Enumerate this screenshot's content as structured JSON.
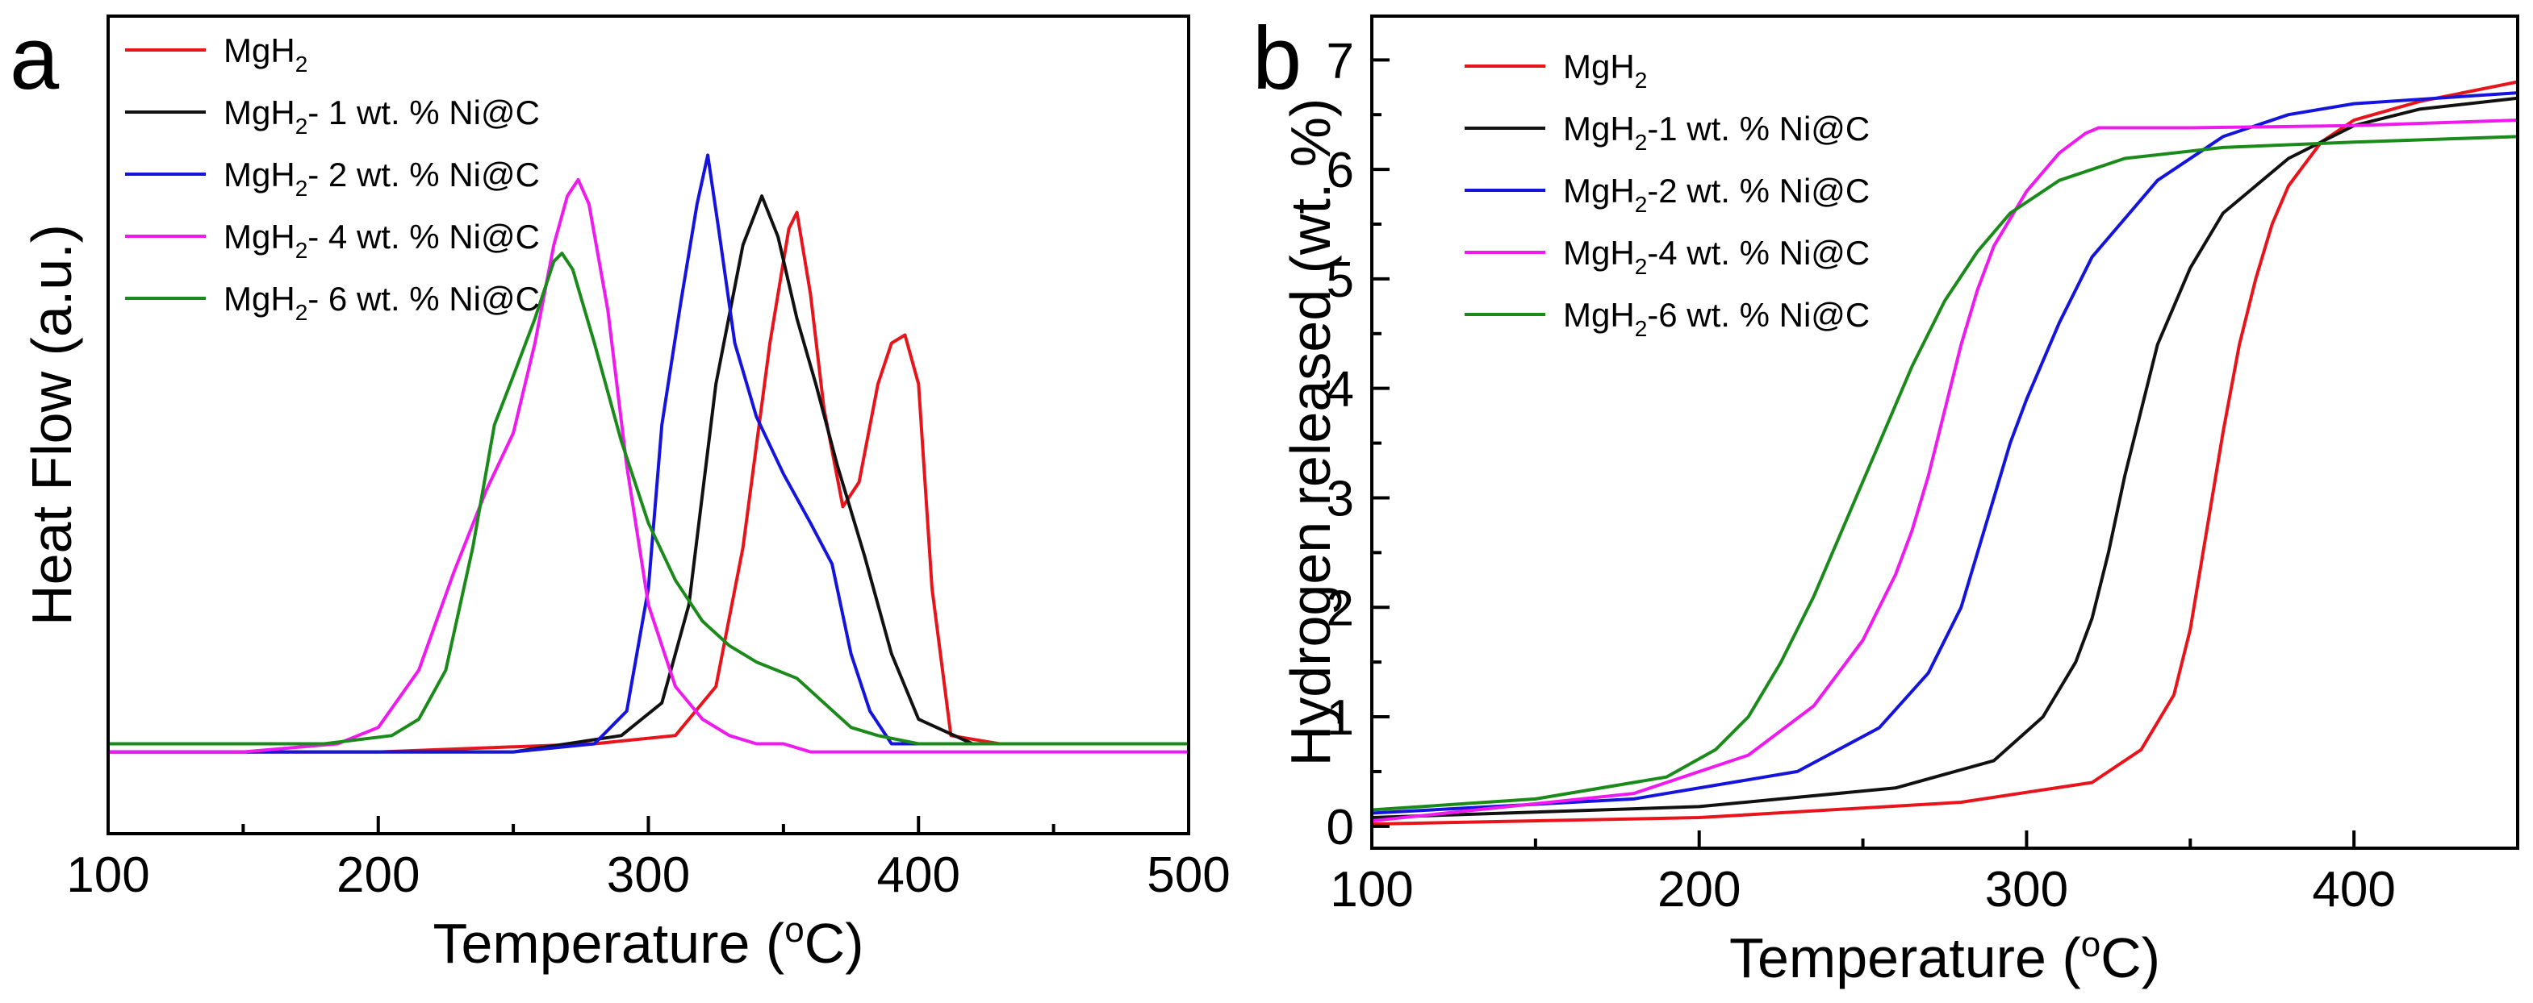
{
  "chart_data": [
    {
      "panel": "a",
      "type": "line",
      "xlabel": "Temperature (°C)",
      "xlabel_parts": {
        "pre": "Temperature (",
        "sup": "o",
        "post": "C)"
      },
      "ylabel": "Heat Flow (a.u.)",
      "xlim": [
        100,
        500
      ],
      "ylim": [
        0,
        1
      ],
      "x_ticks": [
        100,
        200,
        300,
        400,
        500
      ],
      "x_minor_ticks": [
        150,
        250,
        350,
        450
      ],
      "y_ticks": [],
      "legend_position": "top-left",
      "series": [
        {
          "name": "MgH2",
          "label_main": "MgH",
          "label_sub": "2",
          "label_rest": "",
          "color": "#e8141c",
          "x": [
            100,
            200,
            280,
            310,
            325,
            335,
            345,
            352,
            355,
            360,
            365,
            372,
            378,
            385,
            390,
            395,
            400,
            405,
            412,
            430,
            500
          ],
          "y": [
            0.1,
            0.1,
            0.11,
            0.12,
            0.18,
            0.35,
            0.6,
            0.74,
            0.76,
            0.66,
            0.52,
            0.4,
            0.43,
            0.55,
            0.6,
            0.61,
            0.55,
            0.3,
            0.12,
            0.11,
            0.11
          ]
        },
        {
          "name": "MgH2- 1 wt. % Ni@C",
          "label_main": "MgH",
          "label_sub": "2",
          "label_rest": "- 1 wt. % Ni@C",
          "color": "#111111",
          "x": [
            100,
            250,
            290,
            305,
            315,
            325,
            335,
            342,
            348,
            355,
            362,
            370,
            380,
            390,
            400,
            420,
            450,
            500
          ],
          "y": [
            0.1,
            0.1,
            0.12,
            0.16,
            0.28,
            0.55,
            0.72,
            0.78,
            0.73,
            0.63,
            0.55,
            0.45,
            0.34,
            0.22,
            0.14,
            0.11,
            0.11,
            0.11
          ]
        },
        {
          "name": "MgH2- 2 wt. % Ni@C",
          "label_main": "MgH",
          "label_sub": "2",
          "label_rest": "- 2 wt. % Ni@C",
          "color": "#1414dc",
          "x": [
            100,
            250,
            280,
            292,
            300,
            305,
            312,
            318,
            322,
            326,
            332,
            340,
            350,
            360,
            368,
            375,
            382,
            390,
            400,
            500
          ],
          "y": [
            0.1,
            0.1,
            0.11,
            0.15,
            0.3,
            0.5,
            0.65,
            0.77,
            0.83,
            0.74,
            0.6,
            0.51,
            0.44,
            0.38,
            0.33,
            0.22,
            0.15,
            0.11,
            0.11,
            0.11
          ]
        },
        {
          "name": "MgH2- 4 wt. % Ni@C",
          "label_main": "MgH",
          "label_sub": "2",
          "label_rest": "- 4 wt. % Ni@C",
          "color": "#ee1aee",
          "x": [
            100,
            150,
            185,
            200,
            215,
            228,
            240,
            250,
            258,
            265,
            270,
            274,
            278,
            285,
            292,
            300,
            310,
            320,
            330,
            340,
            350,
            360,
            380,
            500
          ],
          "y": [
            0.1,
            0.1,
            0.11,
            0.13,
            0.2,
            0.32,
            0.42,
            0.49,
            0.6,
            0.72,
            0.78,
            0.8,
            0.77,
            0.64,
            0.45,
            0.28,
            0.18,
            0.14,
            0.12,
            0.11,
            0.11,
            0.1,
            0.1,
            0.1
          ]
        },
        {
          "name": "MgH2- 6 wt. % Ni@C",
          "label_main": "MgH",
          "label_sub": "2",
          "label_rest": "- 6 wt. % Ni@C",
          "color": "#1a8a1a",
          "x": [
            100,
            180,
            205,
            215,
            225,
            235,
            243,
            250,
            258,
            265,
            268,
            272,
            280,
            290,
            300,
            310,
            320,
            330,
            340,
            355,
            365,
            375,
            385,
            400,
            500
          ],
          "y": [
            0.11,
            0.11,
            0.12,
            0.14,
            0.2,
            0.35,
            0.5,
            0.56,
            0.63,
            0.7,
            0.71,
            0.69,
            0.6,
            0.48,
            0.38,
            0.31,
            0.26,
            0.23,
            0.21,
            0.19,
            0.16,
            0.13,
            0.12,
            0.11,
            0.11
          ]
        }
      ]
    },
    {
      "panel": "b",
      "type": "line",
      "xlabel": "Temperature (°C)",
      "xlabel_parts": {
        "pre": "Temperature (",
        "sup": "o",
        "post": "C)"
      },
      "ylabel": "Hydrogen released (wt. %)",
      "xlim": [
        100,
        450
      ],
      "ylim": [
        -0.2,
        7.4
      ],
      "x_ticks": [
        100,
        200,
        300,
        400
      ],
      "x_minor_ticks": [
        150,
        250,
        350
      ],
      "y_ticks": [
        0,
        1,
        2,
        3,
        4,
        5,
        6,
        7
      ],
      "y_minor_ticks": [
        0.5,
        1.5,
        2.5,
        3.5,
        4.5,
        5.5,
        6.5
      ],
      "legend_position": "top-left",
      "series": [
        {
          "name": "MgH2",
          "label_main": "MgH",
          "label_sub": "2",
          "label_rest": "",
          "color": "#e8141c",
          "x": [
            100,
            200,
            280,
            320,
            335,
            345,
            350,
            355,
            360,
            365,
            370,
            375,
            380,
            390,
            400,
            420,
            450
          ],
          "y": [
            0.02,
            0.08,
            0.22,
            0.4,
            0.7,
            1.2,
            1.8,
            2.7,
            3.6,
            4.4,
            5.0,
            5.5,
            5.85,
            6.25,
            6.45,
            6.62,
            6.8
          ]
        },
        {
          "name": "MgH2-1 wt. % Ni@C",
          "label_main": "MgH",
          "label_sub": "2",
          "label_rest": "-1 wt. % Ni@C",
          "color": "#111111",
          "x": [
            100,
            200,
            260,
            290,
            305,
            315,
            320,
            325,
            330,
            335,
            340,
            350,
            360,
            380,
            400,
            420,
            450
          ],
          "y": [
            0.08,
            0.18,
            0.35,
            0.6,
            1.0,
            1.5,
            1.9,
            2.5,
            3.2,
            3.8,
            4.4,
            5.1,
            5.6,
            6.1,
            6.4,
            6.55,
            6.65
          ]
        },
        {
          "name": "MgH2-2 wt. % Ni@C",
          "label_main": "MgH",
          "label_sub": "2",
          "label_rest": "-2 wt. % Ni@C",
          "color": "#1414dc",
          "x": [
            100,
            180,
            230,
            255,
            270,
            280,
            285,
            290,
            295,
            300,
            310,
            320,
            340,
            360,
            380,
            400,
            450
          ],
          "y": [
            0.12,
            0.25,
            0.5,
            0.9,
            1.4,
            2.0,
            2.5,
            3.0,
            3.5,
            3.9,
            4.6,
            5.2,
            5.9,
            6.3,
            6.5,
            6.6,
            6.7
          ]
        },
        {
          "name": "MgH2-4 wt. % Ni@C",
          "label_main": "MgH",
          "label_sub": "2",
          "label_rest": "-4 wt. % Ni@C",
          "color": "#ee1aee",
          "x": [
            100,
            180,
            215,
            235,
            250,
            260,
            265,
            270,
            275,
            280,
            285,
            290,
            300,
            310,
            318,
            322,
            330,
            350,
            400,
            450
          ],
          "y": [
            0.05,
            0.3,
            0.65,
            1.1,
            1.7,
            2.3,
            2.7,
            3.2,
            3.8,
            4.4,
            4.9,
            5.3,
            5.8,
            6.15,
            6.33,
            6.38,
            6.38,
            6.38,
            6.4,
            6.45
          ]
        },
        {
          "name": "MgH2-6 wt. % Ni@C",
          "label_main": "MgH",
          "label_sub": "2",
          "label_rest": "-6 wt. % Ni@C",
          "color": "#1a8a1a",
          "x": [
            100,
            150,
            190,
            205,
            215,
            225,
            235,
            245,
            255,
            265,
            275,
            285,
            295,
            310,
            330,
            360,
            400,
            450
          ],
          "y": [
            0.15,
            0.25,
            0.45,
            0.7,
            1.0,
            1.5,
            2.1,
            2.8,
            3.5,
            4.2,
            4.8,
            5.25,
            5.6,
            5.9,
            6.1,
            6.2,
            6.25,
            6.3
          ]
        }
      ]
    }
  ]
}
